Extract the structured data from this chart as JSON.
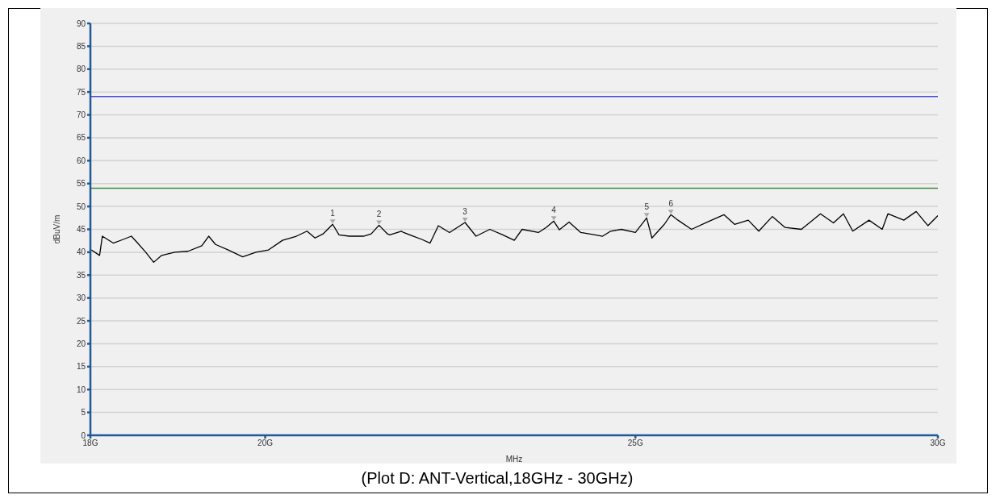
{
  "chart_data": {
    "type": "line",
    "title": "(Plot D: ANT-Vertical,18GHz - 30GHz)",
    "xlabel": "MHz",
    "ylabel": "dBuV/m",
    "x": [
      18.01,
      18.1,
      18.13,
      18.25,
      18.36,
      18.45,
      18.52,
      18.61,
      18.7,
      18.79,
      18.94,
      19.09,
      19.25,
      19.33,
      19.41,
      19.56,
      19.73,
      19.89,
      20.04,
      20.21,
      20.38,
      20.51,
      20.61,
      20.71,
      20.83,
      20.91,
      21.04,
      21.22,
      21.32,
      21.42,
      21.53,
      21.56,
      21.71,
      21.74,
      21.98,
      22.09,
      22.2,
      22.35,
      22.56,
      22.71,
      22.9,
      23.08,
      23.24,
      23.35,
      23.58,
      23.69,
      23.8,
      23.88,
      24.02,
      24.19,
      24.4,
      24.51,
      24.63,
      24.79,
      25,
      25.17,
      25.25,
      25.44,
      25.54,
      25.65,
      25.86,
      26.11,
      26.37,
      26.54,
      26.76,
      26.93,
      27.15,
      27.36,
      27.63,
      27.95,
      28.17,
      28.34,
      28.5,
      28.78,
      29.01,
      29.11,
      29.39,
      29.61,
      29.82,
      30
    ],
    "series": [
      {
        "color": "#000000",
        "values": [
          40.5,
          39.3,
          43.5,
          42,
          42.8,
          43.5,
          42,
          40,
          37.8,
          39.3,
          40,
          40.2,
          41.4,
          43.5,
          41.7,
          40.5,
          39,
          40,
          40.5,
          42.6,
          43.5,
          44.6,
          43.1,
          44,
          46.1,
          43.8,
          43.5,
          43.5,
          44,
          45.9,
          44,
          43.8,
          44.6,
          44.3,
          42.8,
          42,
          45.8,
          44.3,
          46.5,
          43.5,
          45,
          43.8,
          42.6,
          45,
          44.3,
          45.4,
          46.8,
          44.9,
          46.6,
          44.3,
          43.8,
          43.5,
          44.6,
          45,
          44.3,
          47.5,
          43.1,
          46.1,
          48.2,
          47,
          45,
          46.6,
          48.2,
          46.1,
          47,
          44.6,
          47.8,
          45.4,
          45,
          48.4,
          46.4,
          48.4,
          44.6,
          47,
          45,
          48.4,
          47,
          48.9,
          45.8,
          48
        ]
      }
    ],
    "xlim": [
      18,
      30
    ],
    "xticks": [
      {
        "value": 18,
        "label": "18G"
      },
      {
        "value": 20,
        "label": "20G"
      },
      {
        "value": 25,
        "label": "25G"
      },
      {
        "value": 30,
        "label": "30G"
      }
    ],
    "ylim": [
      0,
      90
    ],
    "yticks": [
      0,
      5,
      10,
      15,
      20,
      25,
      30,
      35,
      40,
      45,
      50,
      55,
      60,
      65,
      70,
      75,
      80,
      85,
      90
    ],
    "log": "x",
    "grid": "y",
    "ref_lines": [
      {
        "axis": "y",
        "value": 74,
        "color": "#4a4ae0"
      },
      {
        "axis": "y",
        "value": 54,
        "color": "#3c8c3c"
      }
    ],
    "annotations": [
      {
        "text": "1",
        "x": 20.83,
        "y": 46.1
      },
      {
        "text": "2",
        "x": 21.42,
        "y": 45.9
      },
      {
        "text": "3",
        "x": 22.56,
        "y": 46.5
      },
      {
        "text": "4",
        "x": 23.8,
        "y": 46.8
      },
      {
        "text": "5",
        "x": 25.17,
        "y": 47.5
      },
      {
        "text": "6",
        "x": 25.54,
        "y": 48.2
      }
    ]
  }
}
